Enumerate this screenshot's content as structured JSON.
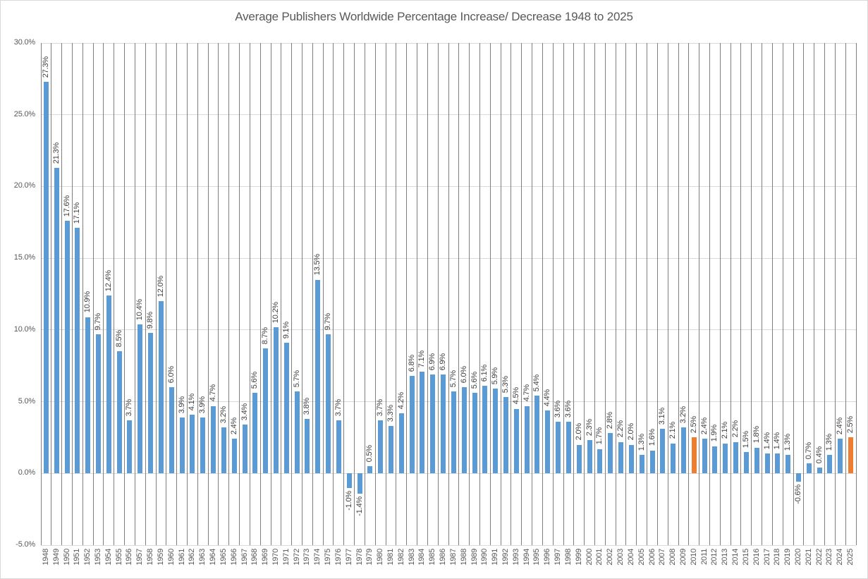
{
  "chart_data": {
    "type": "bar",
    "title": "Average Publishers Worldwide Percentage Increase/ Decrease 1948 to 2025",
    "xlabel": "",
    "ylabel": "",
    "ylim": [
      -5,
      30
    ],
    "grid": {
      "horizontal": true,
      "vertical": true
    },
    "legend": "none",
    "y_ticks": [
      "30.0%",
      "25.0%",
      "20.0%",
      "15.0%",
      "10.0%",
      "5.0%",
      "0.0%",
      "-5.0%"
    ],
    "y_tick_values": [
      30,
      25,
      20,
      15,
      10,
      5,
      0,
      -5
    ],
    "categories": [
      "1948",
      "1949",
      "1950",
      "1951",
      "1952",
      "1953",
      "1954",
      "1955",
      "1956",
      "1957",
      "1958",
      "1959",
      "1960",
      "1961",
      "1962",
      "1963",
      "1964",
      "1965",
      "1966",
      "1967",
      "1968",
      "1969",
      "1970",
      "1971",
      "1972",
      "1973",
      "1974",
      "1975",
      "1976",
      "1977",
      "1978",
      "1979",
      "1980",
      "1981",
      "1982",
      "1983",
      "1984",
      "1985",
      "1986",
      "1987",
      "1988",
      "1989",
      "1990",
      "1991",
      "1992",
      "1993",
      "1994",
      "1995",
      "1996",
      "1997",
      "1998",
      "1999",
      "2000",
      "2001",
      "2002",
      "2003",
      "2004",
      "2005",
      "2006",
      "2007",
      "2008",
      "2009",
      "2010",
      "2011",
      "2012",
      "2013",
      "2014",
      "2015",
      "2016",
      "2017",
      "2018",
      "2019",
      "2020",
      "2021",
      "2022",
      "2023",
      "2024",
      "2025"
    ],
    "values": [
      27.3,
      21.3,
      17.6,
      17.1,
      10.9,
      9.7,
      12.4,
      8.5,
      3.7,
      10.4,
      9.8,
      12.0,
      6.0,
      3.9,
      4.1,
      3.9,
      4.7,
      3.2,
      2.4,
      3.4,
      5.6,
      8.7,
      10.2,
      9.1,
      5.7,
      3.8,
      13.5,
      9.7,
      3.7,
      -1.0,
      -1.4,
      0.5,
      3.7,
      3.3,
      4.2,
      6.8,
      7.1,
      6.9,
      6.9,
      5.7,
      6.0,
      5.6,
      6.1,
      5.9,
      5.3,
      4.5,
      4.7,
      5.4,
      4.4,
      3.6,
      3.6,
      2.0,
      2.3,
      1.7,
      2.8,
      2.2,
      2.0,
      1.3,
      1.6,
      3.1,
      2.1,
      3.2,
      2.5,
      2.4,
      1.9,
      2.1,
      2.2,
      1.5,
      1.8,
      1.4,
      1.4,
      1.3,
      -0.6,
      0.7,
      0.4,
      1.3,
      2.4,
      2.5
    ],
    "labels": [
      "27.3%",
      "21.3%",
      "17.6%",
      "17.1%",
      "10.9%",
      "9.7%",
      "12.4%",
      "8.5%",
      "3.7%",
      "10.4%",
      "9.8%",
      "12.0%",
      "6.0%",
      "3.9%",
      "4.1%",
      "3.9%",
      "4.7%",
      "3.2%",
      "2.4%",
      "3.4%",
      "5.6%",
      "8.7%",
      "10.2%",
      "9.1%",
      "5.7%",
      "3.8%",
      "13.5%",
      "9.7%",
      "3.7%",
      "-1.0%",
      "-1.4%",
      "0.5%",
      "3.7%",
      "3.3%",
      "4.2%",
      "6.8%",
      "7.1%",
      "6.9%",
      "6.9%",
      "5.7%",
      "6.0%",
      "5.6%",
      "6.1%",
      "5.9%",
      "5.3%",
      "4.5%",
      "4.7%",
      "5.4%",
      "4.4%",
      "3.6%",
      "3.6%",
      "2.0%",
      "2.3%",
      "1.7%",
      "2.8%",
      "2.2%",
      "2.0%",
      "1.3%",
      "1.6%",
      "3.1%",
      "2.1%",
      "3.2%",
      "2.5%",
      "2.4%",
      "1.9%",
      "2.1%",
      "2.2%",
      "1.5%",
      "1.8%",
      "1.4%",
      "1.4%",
      "1.3%",
      "-0.6%",
      "0.7%",
      "0.4%",
      "1.3%",
      "2.4%",
      "2.5%"
    ],
    "highlight_categories": [
      "2010",
      "2025"
    ],
    "colors": {
      "bar": "#5B9BD5",
      "highlight": "#ED7D31",
      "gridline_horizontal": "#D9D9D9",
      "gridline_vertical": "#7F7F7F",
      "axis_text": "#595959",
      "data_label_text": "#404040",
      "title_text": "#595959"
    }
  }
}
